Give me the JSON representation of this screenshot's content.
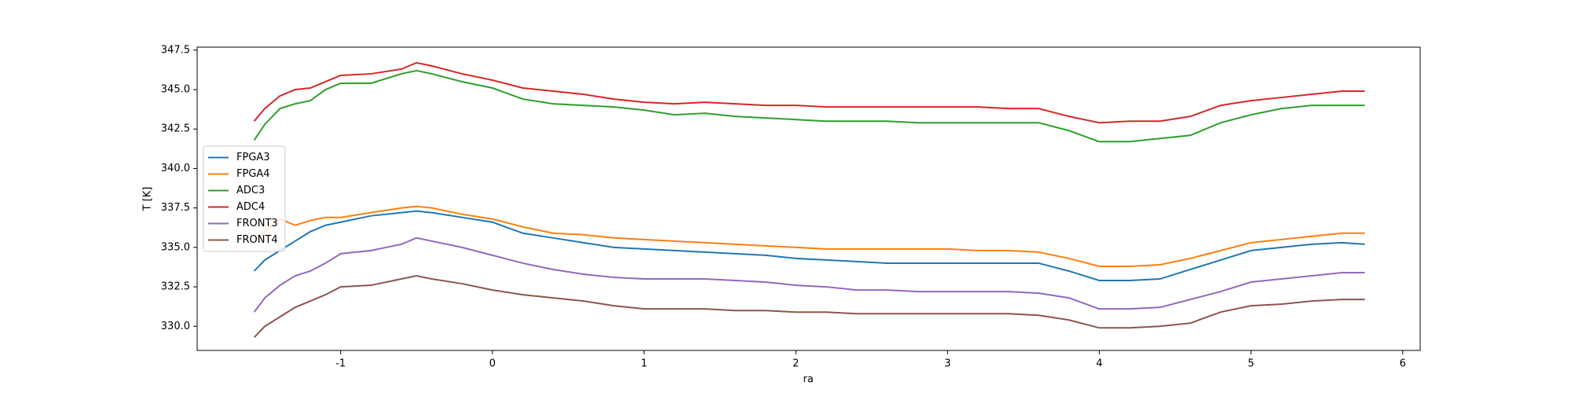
{
  "chart_data": {
    "type": "line",
    "xlabel": "ra",
    "ylabel": "T [K]",
    "x": [
      -1.57,
      -1.5,
      -1.4,
      -1.3,
      -1.2,
      -1.1,
      -1.0,
      -0.8,
      -0.6,
      -0.5,
      -0.4,
      -0.2,
      0,
      0.2,
      0.4,
      0.6,
      0.8,
      1.0,
      1.2,
      1.4,
      1.6,
      1.8,
      2.0,
      2.2,
      2.4,
      2.6,
      2.8,
      3.0,
      3.2,
      3.4,
      3.6,
      3.8,
      4.0,
      4.2,
      4.4,
      4.6,
      4.8,
      5.0,
      5.2,
      5.4,
      5.6,
      5.75
    ],
    "series": [
      {
        "name": "FPGA3",
        "color": "#1f77b4",
        "values": [
          333.5,
          334.2,
          334.8,
          335.4,
          336.0,
          336.4,
          336.6,
          337.0,
          337.2,
          337.3,
          337.2,
          336.9,
          336.6,
          335.9,
          335.6,
          335.3,
          335.0,
          334.9,
          334.8,
          334.7,
          334.6,
          334.5,
          334.3,
          334.2,
          334.1,
          334.0,
          334.0,
          334.0,
          334.0,
          334.0,
          334.0,
          333.5,
          332.9,
          332.9,
          333.0,
          333.6,
          334.2,
          334.8,
          335.0,
          335.2,
          335.3,
          335.2
        ]
      },
      {
        "name": "FPGA4",
        "color": "#ff7f0e",
        "values": [
          335.5,
          336.0,
          336.8,
          336.4,
          336.7,
          336.9,
          336.9,
          337.2,
          337.5,
          337.6,
          337.5,
          337.1,
          336.8,
          336.3,
          335.9,
          335.8,
          335.6,
          335.5,
          335.4,
          335.3,
          335.2,
          335.1,
          335.0,
          334.9,
          334.9,
          334.9,
          334.9,
          334.9,
          334.8,
          334.8,
          334.7,
          334.3,
          333.8,
          333.8,
          333.9,
          334.3,
          334.8,
          335.3,
          335.5,
          335.7,
          335.9,
          335.9
        ]
      },
      {
        "name": "ADC3",
        "color": "#2ca02c",
        "values": [
          341.8,
          342.8,
          343.8,
          344.1,
          344.3,
          345.0,
          345.4,
          345.4,
          346.0,
          346.2,
          346.0,
          345.5,
          345.1,
          344.4,
          344.1,
          344.0,
          343.9,
          343.7,
          343.4,
          343.5,
          343.3,
          343.2,
          343.1,
          343.0,
          343.0,
          343.0,
          342.9,
          342.9,
          342.9,
          342.9,
          342.9,
          342.4,
          341.7,
          341.7,
          341.9,
          342.1,
          342.9,
          343.4,
          343.8,
          344.0,
          344.0,
          344.0
        ]
      },
      {
        "name": "ADC4",
        "color": "#d62728",
        "values": [
          343.0,
          343.8,
          344.6,
          345.0,
          345.1,
          345.5,
          345.9,
          346.0,
          346.3,
          346.7,
          346.5,
          346.0,
          345.6,
          345.1,
          344.9,
          344.7,
          344.4,
          344.2,
          344.1,
          344.2,
          344.1,
          344.0,
          344.0,
          343.9,
          343.9,
          343.9,
          343.9,
          343.9,
          343.9,
          343.8,
          343.8,
          343.3,
          342.9,
          343.0,
          343.0,
          343.3,
          344.0,
          344.3,
          344.5,
          344.7,
          344.9,
          344.9
        ]
      },
      {
        "name": "FRONT3",
        "color": "#9467bd",
        "values": [
          330.9,
          331.8,
          332.6,
          333.2,
          333.5,
          334.0,
          334.6,
          334.8,
          335.2,
          335.6,
          335.4,
          335.0,
          334.5,
          334.0,
          333.6,
          333.3,
          333.1,
          333.0,
          333.0,
          333.0,
          332.9,
          332.8,
          332.6,
          332.5,
          332.3,
          332.3,
          332.2,
          332.2,
          332.2,
          332.2,
          332.1,
          331.8,
          331.1,
          331.1,
          331.2,
          331.7,
          332.2,
          332.8,
          333.0,
          333.2,
          333.4,
          333.4
        ]
      },
      {
        "name": "FRONT4",
        "color": "#8c564b",
        "values": [
          329.3,
          330.0,
          330.6,
          331.2,
          331.6,
          332.0,
          332.5,
          332.6,
          333.0,
          333.2,
          333.0,
          332.7,
          332.3,
          332.0,
          331.8,
          331.6,
          331.3,
          331.1,
          331.1,
          331.1,
          331.0,
          331.0,
          330.9,
          330.9,
          330.8,
          330.8,
          330.8,
          330.8,
          330.8,
          330.8,
          330.7,
          330.4,
          329.9,
          329.9,
          330.0,
          330.2,
          330.9,
          331.3,
          331.4,
          331.6,
          331.7,
          331.7
        ]
      }
    ],
    "xlim": [
      -1.946,
      6.115
    ],
    "xticks": [
      -1,
      0,
      1,
      2,
      3,
      4,
      5,
      6
    ],
    "ylim": [
      328.47,
      347.69
    ],
    "yticks": [
      {
        "value": 330,
        "label": "330.0"
      },
      332.5,
      {
        "value": 335,
        "label": "335.0"
      },
      337.5,
      {
        "value": 340,
        "label": "340.0"
      },
      342.5,
      {
        "value": 345,
        "label": "345.0"
      },
      347.5
    ],
    "grid": false,
    "legend": "center left"
  }
}
